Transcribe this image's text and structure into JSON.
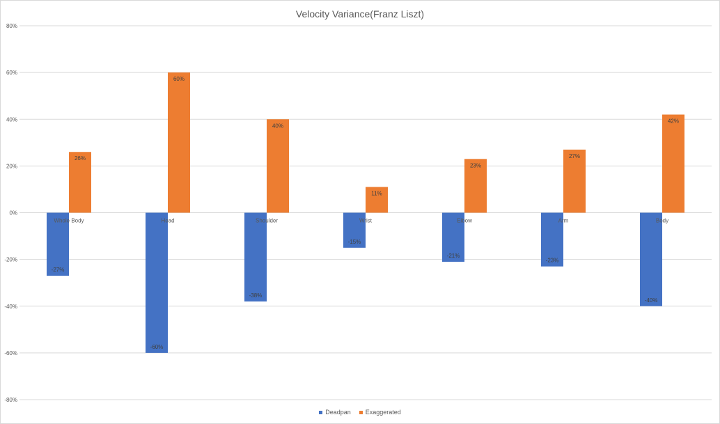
{
  "chart_data": {
    "type": "bar",
    "title": "Velocity Variance(Franz Liszt)",
    "categories": [
      "Whole Body",
      "Head",
      "Shoulder",
      "Wrist",
      "Elbow",
      "Arm",
      "Body"
    ],
    "series": [
      {
        "name": "Deadpan",
        "color": "#4472c4",
        "values": [
          -27,
          -60,
          -38,
          -15,
          -21,
          -23,
          -40
        ],
        "labels": [
          "-27%",
          "-60%",
          "-38%",
          "-15%",
          "-21%",
          "-23%",
          "-40%"
        ]
      },
      {
        "name": "Exaggerated",
        "color": "#ed7d31",
        "values": [
          26,
          60,
          40,
          11,
          23,
          27,
          42
        ],
        "labels": [
          "26%",
          "60%",
          "40%",
          "11%",
          "23%",
          "27%",
          "42%"
        ]
      }
    ],
    "ylim": [
      -80,
      80
    ],
    "yticks": [
      80,
      60,
      40,
      20,
      0,
      -20,
      -40,
      -60,
      -80
    ],
    "ytick_labels": [
      "80%",
      "60%",
      "40%",
      "20%",
      "0%",
      "-20%",
      "-40%",
      "-60%",
      "-80%"
    ],
    "grid": true,
    "legend_position": "bottom"
  }
}
